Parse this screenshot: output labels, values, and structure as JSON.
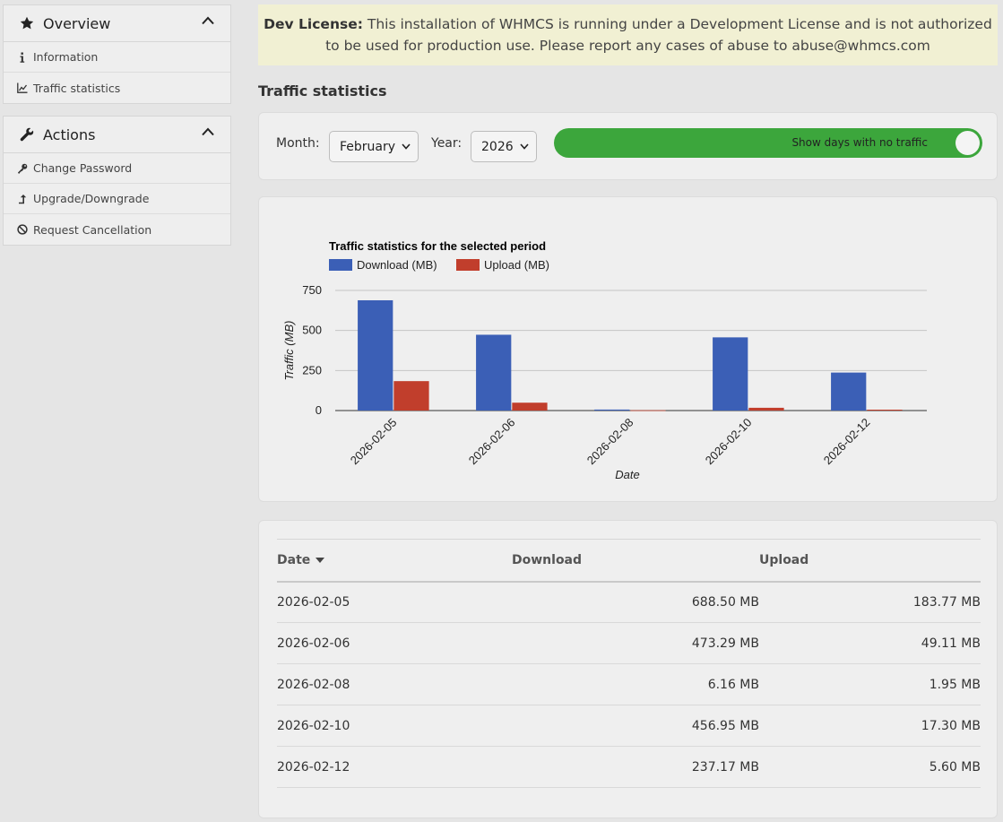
{
  "sidebar": {
    "overview": {
      "title": "Overview",
      "items": [
        {
          "label": "Information",
          "icon": "info-icon"
        },
        {
          "label": "Traffic statistics",
          "icon": "line-chart-icon"
        }
      ]
    },
    "actions": {
      "title": "Actions",
      "items": [
        {
          "label": "Change Password",
          "icon": "key-icon"
        },
        {
          "label": "Upgrade/Downgrade",
          "icon": "level-up-icon"
        },
        {
          "label": "Request Cancellation",
          "icon": "ban-icon"
        }
      ]
    }
  },
  "notice": {
    "bold": "Dev License:",
    "text": " This installation of WHMCS is running under a Development License and is not authorized to be used for production use. Please report any cases of abuse to abuse@whmcs.com"
  },
  "page_title": "Traffic statistics",
  "filters": {
    "month_label": "Month:",
    "month_value": "February",
    "year_label": "Year:",
    "year_value": "2026",
    "toggle_label": "Show days with no traffic",
    "toggle_on": true
  },
  "colors": {
    "download": "#3b5fb6",
    "upload": "#c13e2c",
    "toggle": "#3ca63c"
  },
  "chart_data": {
    "type": "bar",
    "title": "Traffic statistics for the selected period",
    "categories": [
      "2026-02-05",
      "2026-02-06",
      "2026-02-08",
      "2026-02-10",
      "2026-02-12"
    ],
    "series": [
      {
        "name": "Download (MB)",
        "values": [
          688.5,
          473.29,
          6.16,
          456.95,
          237.17
        ]
      },
      {
        "name": "Upload (MB)",
        "values": [
          183.77,
          49.11,
          1.95,
          17.3,
          5.6
        ]
      }
    ],
    "xlabel": "Date",
    "ylabel": "Traffic (MB)",
    "yticks": [
      0,
      250,
      500,
      750
    ],
    "ylim": [
      0,
      750
    ],
    "grid": true,
    "legend": "top-left"
  },
  "table": {
    "headers": {
      "date": "Date",
      "download": "Download",
      "upload": "Upload"
    },
    "rows": [
      {
        "date": "2026-02-05",
        "download": "688.50 MB",
        "upload": "183.77 MB"
      },
      {
        "date": "2026-02-06",
        "download": "473.29 MB",
        "upload": "49.11 MB"
      },
      {
        "date": "2026-02-08",
        "download": "6.16 MB",
        "upload": "1.95 MB"
      },
      {
        "date": "2026-02-10",
        "download": "456.95 MB",
        "upload": "17.30 MB"
      },
      {
        "date": "2026-02-12",
        "download": "237.17 MB",
        "upload": "5.60 MB"
      }
    ]
  }
}
